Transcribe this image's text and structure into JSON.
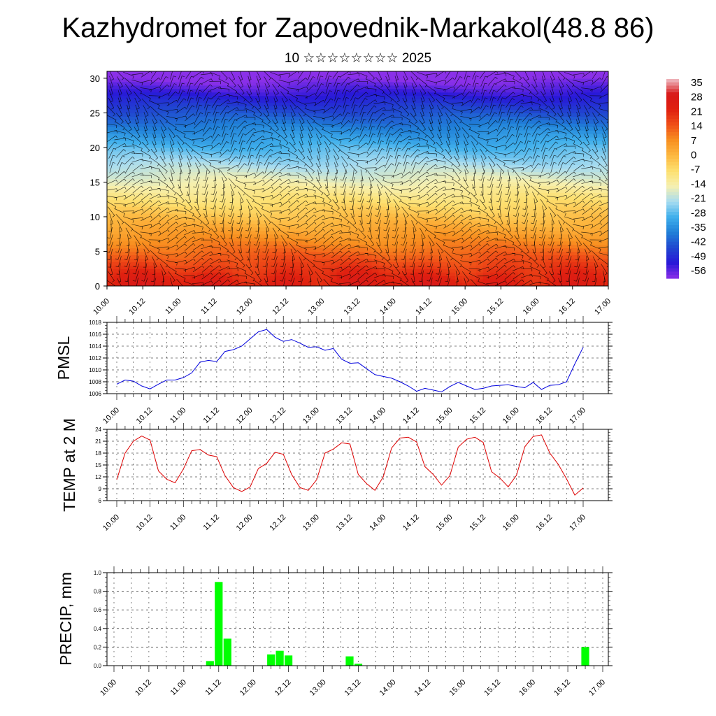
{
  "title": "Kazhydromet for Zapovednik-Markakol(48.8 86)",
  "subtitle": "10 ☆☆☆☆☆☆☆☆ 2025",
  "time_labels": [
    "10.00",
    "10.12",
    "11.00",
    "11.12",
    "12.00",
    "12.12",
    "13.00",
    "13.12",
    "14.00",
    "14.12",
    "15.00",
    "15.12",
    "16.00",
    "16.12",
    "17.00"
  ],
  "chart_data": [
    {
      "type": "heatmap",
      "name": "cross-section",
      "ylim": [
        0,
        31
      ],
      "yticks": [
        0,
        5,
        10,
        15,
        20,
        25,
        30
      ],
      "colorbar": {
        "labels": [
          "35",
          "28",
          "21",
          "14",
          "7",
          "0",
          "-7",
          "-14",
          "-21",
          "-28",
          "-35",
          "-42",
          "-49",
          "-56"
        ],
        "stops": [
          {
            "v": 35,
            "color": "#f0c0c8"
          },
          {
            "v": 28,
            "color": "#d81818"
          },
          {
            "v": 21,
            "color": "#e02010"
          },
          {
            "v": 14,
            "color": "#f05018"
          },
          {
            "v": 7,
            "color": "#f89020"
          },
          {
            "v": 0,
            "color": "#fdb840"
          },
          {
            "v": -7,
            "color": "#fde070"
          },
          {
            "v": -14,
            "color": "#f6f0b0"
          },
          {
            "v": -21,
            "color": "#a8dcf0"
          },
          {
            "v": -28,
            "color": "#40b0ec"
          },
          {
            "v": -35,
            "color": "#2080d8"
          },
          {
            "v": -42,
            "color": "#2048d0"
          },
          {
            "v": -49,
            "color": "#2818d8"
          },
          {
            "v": -56,
            "color": "#8a30e8"
          }
        ]
      }
    },
    {
      "type": "line",
      "ylabel": "PMSL",
      "ylim": [
        1006,
        1018
      ],
      "yticks": [
        1006,
        1008,
        1010,
        1012,
        1014,
        1016,
        1018
      ],
      "color": "#0000dd",
      "step_hours": 3,
      "values": [
        1007.6,
        1008.3,
        1008.1,
        1007.3,
        1006.8,
        1007.6,
        1008.3,
        1008.3,
        1008.7,
        1009.5,
        1011.3,
        1011.6,
        1011.4,
        1013.1,
        1013.4,
        1014.0,
        1015.2,
        1016.4,
        1016.8,
        1015.5,
        1014.8,
        1015.1,
        1014.5,
        1013.8,
        1013.9,
        1013.3,
        1013.6,
        1011.8,
        1011.1,
        1011.2,
        1010.2,
        1009.2,
        1008.9,
        1008.6,
        1008.0,
        1007.3,
        1006.4,
        1006.9,
        1006.6,
        1006.3,
        1007.2,
        1007.9,
        1007.3,
        1006.7,
        1006.9,
        1007.3,
        1007.4,
        1007.5,
        1007.2,
        1007.0,
        1007.9,
        1006.7,
        1007.4,
        1007.5,
        1008.0,
        1011.0,
        1013.8
      ]
    },
    {
      "type": "line",
      "ylabel": "TEMP at 2 M",
      "ylim": [
        6,
        24
      ],
      "yticks": [
        6,
        9,
        12,
        15,
        18,
        21,
        24
      ],
      "color": "#dd0000",
      "step_hours": 3,
      "values": [
        11.3,
        18.0,
        21.0,
        22.3,
        21.3,
        13.5,
        11.4,
        10.5,
        14.0,
        18.6,
        18.9,
        17.5,
        17.1,
        12.3,
        9.3,
        8.3,
        9.4,
        14.1,
        15.4,
        18.2,
        17.7,
        12.6,
        9.3,
        8.6,
        11.3,
        18.0,
        19.0,
        20.6,
        20.3,
        12.6,
        10.3,
        8.6,
        12.0,
        19.3,
        21.8,
        22.0,
        20.8,
        14.6,
        12.6,
        9.9,
        12.3,
        19.5,
        21.5,
        22.0,
        20.7,
        13.3,
        11.7,
        9.5,
        12.4,
        19.6,
        22.2,
        22.6,
        18.0,
        15.2,
        11.5,
        7.4,
        9.2
      ]
    },
    {
      "type": "bar",
      "ylabel": "PRECIP, mm",
      "ylim": [
        0,
        1.0
      ],
      "yticks": [
        0.0,
        0.2,
        0.4,
        0.6,
        0.8,
        1.0
      ],
      "ytick_labels": [
        "0.0",
        "0.2",
        "0.4",
        "0.6",
        "0.8",
        "1.0"
      ],
      "color": "#00ff00",
      "step_hours": 3,
      "values": [
        0,
        0,
        0,
        0,
        0,
        0,
        0,
        0,
        0,
        0,
        0,
        0.05,
        0.9,
        0.29,
        0,
        0,
        0,
        0,
        0.12,
        0.16,
        0.11,
        0,
        0,
        0,
        0,
        0,
        0,
        0.1,
        0.02,
        0,
        0,
        0,
        0,
        0,
        0,
        0,
        0,
        0,
        0,
        0,
        0,
        0,
        0,
        0,
        0,
        0,
        0,
        0,
        0,
        0,
        0,
        0,
        0,
        0,
        0.2,
        0,
        0
      ]
    }
  ]
}
